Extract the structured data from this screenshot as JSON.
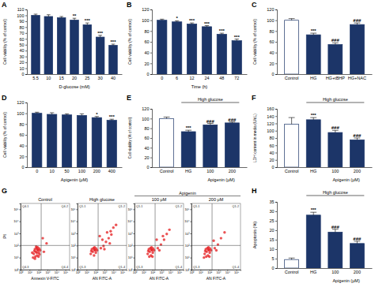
{
  "chart_data": [
    {
      "type": "bar",
      "panel_label": "A",
      "y_label": "Cell viability (% of control)",
      "x_label": "D-glucose (mM)",
      "categories": [
        "5.5",
        "10",
        "15",
        "20",
        "25",
        "30",
        "40"
      ],
      "values": [
        100,
        98,
        96,
        92,
        84,
        63,
        49
      ],
      "errors": [
        2,
        3,
        2,
        3,
        3,
        3,
        2
      ],
      "significance": [
        null,
        null,
        null,
        "**",
        "***",
        "***",
        "***"
      ],
      "color": "#1c3568",
      "ylim": [
        0,
        110
      ],
      "yticks": [
        0,
        10,
        20,
        30,
        40,
        50,
        60,
        70,
        80,
        90,
        100,
        110
      ]
    },
    {
      "type": "bar",
      "panel_label": "B",
      "y_label": "Cell viability (% of control)",
      "x_label": "Time (h)",
      "categories": [
        "0",
        "6",
        "12",
        "24",
        "48",
        "72"
      ],
      "values": [
        100,
        97,
        93,
        88,
        74,
        62
      ],
      "errors": [
        2,
        2,
        2,
        2,
        2,
        3
      ],
      "significance": [
        null,
        "*",
        "***",
        "***",
        "***",
        "***"
      ],
      "color": "#1c3568",
      "ylim": [
        0,
        120
      ],
      "yticks": [
        0,
        20,
        40,
        60,
        80,
        100,
        120
      ]
    },
    {
      "type": "bar",
      "panel_label": "C",
      "y_label": "Cell viability (% of control)",
      "categories": [
        "Control",
        "HG",
        "HG+tBHP",
        "HG+NAC"
      ],
      "values": [
        100,
        73,
        55,
        92
      ],
      "errors": [
        3,
        3,
        3,
        3
      ],
      "significance": [
        null,
        "***",
        "###",
        "###"
      ],
      "colors": [
        "#ffffff",
        "#1c3568",
        "#1c3568",
        "#1c3568"
      ],
      "ylim": [
        0,
        120
      ],
      "yticks": [
        0,
        20,
        40,
        60,
        80,
        100,
        120
      ]
    },
    {
      "type": "bar",
      "panel_label": "D",
      "y_label": "Cell viability (% of control)",
      "x_label": "Apigenin (μM)",
      "categories": [
        "0",
        "10",
        "50",
        "100",
        "200",
        "400"
      ],
      "values": [
        100,
        98,
        97,
        96,
        92,
        87
      ],
      "errors": [
        2,
        3,
        2,
        3,
        2,
        2
      ],
      "significance": [
        null,
        null,
        null,
        null,
        "*",
        "***"
      ],
      "color": "#1c3568",
      "ylim": [
        0,
        120
      ],
      "yticks": [
        0,
        20,
        40,
        60,
        80,
        100,
        120
      ]
    },
    {
      "type": "bar",
      "panel_label": "E",
      "y_label": "Cell viability (% of control)",
      "categories": [
        "Control",
        "HG",
        "100",
        "200"
      ],
      "values": [
        100,
        73,
        87,
        91
      ],
      "errors": [
        3,
        3,
        3,
        2
      ],
      "significance": [
        null,
        "***",
        "###",
        "###"
      ],
      "bracket_label": "High glucose",
      "bracket_categories": [
        "HG",
        "100",
        "200"
      ],
      "x_group_label": "Apigenin (μM)",
      "x_group_categories": [
        "100",
        "200"
      ],
      "colors": [
        "#ffffff",
        "#1c3568",
        "#1c3568",
        "#1c3568"
      ],
      "ylim": [
        0,
        120
      ],
      "yticks": [
        0,
        20,
        40,
        60,
        80,
        100,
        120
      ]
    },
    {
      "type": "bar",
      "panel_label": "F",
      "y_label": "LDH content in media (U/dL)",
      "categories": [
        "Control",
        "HG",
        "100",
        "200"
      ],
      "values": [
        118,
        130,
        95,
        75
      ],
      "errors": [
        18,
        6,
        6,
        5
      ],
      "significance": [
        null,
        "***",
        "###",
        "###"
      ],
      "bracket_label": "High glucose",
      "bracket_categories": [
        "HG",
        "100",
        "200"
      ],
      "x_group_label": "Apigenin (μM)",
      "x_group_categories": [
        "100",
        "200"
      ],
      "colors": [
        "#ffffff",
        "#1c3568",
        "#1c3568",
        "#1c3568"
      ],
      "ylim": [
        0,
        160
      ],
      "yticks": [
        0,
        20,
        40,
        60,
        80,
        100,
        120,
        140,
        160
      ]
    },
    {
      "type": "scatter",
      "panel_label": "G",
      "y_label": "PI",
      "log": true,
      "color": "#e41a1c",
      "marker": "dot",
      "xlim": [
        1,
        300000
      ],
      "ylim": [
        1,
        300000
      ],
      "xticks": [
        {
          "value": 1,
          "label": "10⁰"
        },
        {
          "value": 10,
          "label": "10¹"
        },
        {
          "value": 100,
          "label": "10²"
        },
        {
          "value": 1000,
          "label": "10³"
        },
        {
          "value": 10000,
          "label": "10⁴"
        },
        {
          "value": 100000,
          "label": "10⁵"
        }
      ],
      "yticks": [
        {
          "value": 1,
          "label": "10⁰"
        },
        {
          "value": 10,
          "label": "10¹"
        },
        {
          "value": 100,
          "label": "10²"
        },
        {
          "value": 1000,
          "label": "10³"
        },
        {
          "value": 10000,
          "label": "10⁴"
        },
        {
          "value": 100000,
          "label": "10⁵"
        }
      ],
      "groups": [
        {
          "label": "Apigenin",
          "subplots": [
            "100 μM",
            "200 μM"
          ]
        }
      ],
      "subplots": [
        {
          "title": "Control",
          "x_label": "Annexin V-FITC",
          "quadrant_x": 200,
          "quadrant_y": 100,
          "quadrant_labels": [
            "Q4-1",
            "Q4-2",
            "Q4-3",
            "Q4-4"
          ],
          "x": [
            30,
            50,
            70,
            40,
            90,
            60,
            25,
            110,
            80,
            45,
            120,
            35,
            65,
            100,
            55,
            150,
            20,
            75,
            130,
            40,
            400,
            800,
            300
          ],
          "y": [
            20,
            30,
            15,
            50,
            40,
            60,
            10,
            25,
            70,
            12,
            55,
            35,
            25,
            12,
            80,
            40,
            25,
            45,
            18,
            8,
            30,
            150,
            400
          ]
        },
        {
          "title": "High glucose",
          "x_label": "AN FITC-A",
          "quadrant_x": 200,
          "quadrant_y": 100,
          "quadrant_labels": [
            "Q1-1",
            "Q1-2",
            "Q1-3",
            "Q1-4"
          ],
          "x": [
            30,
            50,
            70,
            40,
            90,
            60,
            110,
            80,
            120,
            35,
            150,
            75,
            400,
            800,
            1500,
            3000,
            6000,
            2000,
            10000,
            5000,
            600,
            1000,
            20000,
            300,
            4000
          ],
          "y": [
            20,
            30,
            15,
            50,
            40,
            60,
            25,
            70,
            55,
            35,
            40,
            45,
            60,
            90,
            200,
            400,
            800,
            1200,
            3000,
            1500,
            300,
            50,
            5000,
            600,
            150
          ]
        },
        {
          "title": "100 μM",
          "x_label": "AN FITC-A",
          "quadrant_x": 200,
          "quadrant_y": 100,
          "quadrant_labels": [
            "Q1-1",
            "Q1-2",
            "Q1-3",
            "Q1-4"
          ],
          "x": [
            30,
            50,
            70,
            40,
            90,
            60,
            110,
            80,
            120,
            35,
            150,
            75,
            45,
            100,
            400,
            900,
            2000,
            4000,
            600,
            1500,
            8000,
            300
          ],
          "y": [
            20,
            30,
            15,
            50,
            40,
            60,
            25,
            70,
            55,
            35,
            40,
            45,
            12,
            12,
            60,
            120,
            300,
            900,
            40,
            600,
            2000,
            300
          ]
        },
        {
          "title": "200 μM",
          "x_label": "AN FITC-A",
          "quadrant_x": 200,
          "quadrant_y": 100,
          "quadrant_labels": [
            "Q1-1",
            "Q1-2",
            "Q1-3",
            "Q1-4"
          ],
          "x": [
            30,
            50,
            70,
            40,
            90,
            60,
            110,
            80,
            120,
            35,
            150,
            75,
            45,
            100,
            25,
            400,
            900,
            2000,
            600,
            5000,
            300
          ],
          "y": [
            20,
            30,
            15,
            50,
            40,
            60,
            25,
            70,
            55,
            35,
            40,
            45,
            12,
            12,
            10,
            60,
            120,
            400,
            40,
            1200,
            250
          ]
        }
      ]
    },
    {
      "type": "bar",
      "panel_label": "H",
      "y_label": "Apoptosis (%)",
      "categories": [
        "Control",
        "HG",
        "100",
        "200"
      ],
      "values": [
        4.5,
        28,
        19,
        13
      ],
      "errors": [
        0.8,
        1.5,
        1.5,
        1.2
      ],
      "significance": [
        null,
        "***",
        "###",
        "###"
      ],
      "bracket_label": "High glucose",
      "bracket_categories": [
        "HG",
        "100",
        "200"
      ],
      "x_group_label": "Apigenin (μM)",
      "x_group_categories": [
        "100",
        "200"
      ],
      "colors": [
        "#ffffff",
        "#1c3568",
        "#1c3568",
        "#1c3568"
      ],
      "ylim": [
        0,
        35
      ],
      "yticks": [
        0,
        5,
        10,
        15,
        20,
        25,
        30,
        35
      ]
    }
  ]
}
